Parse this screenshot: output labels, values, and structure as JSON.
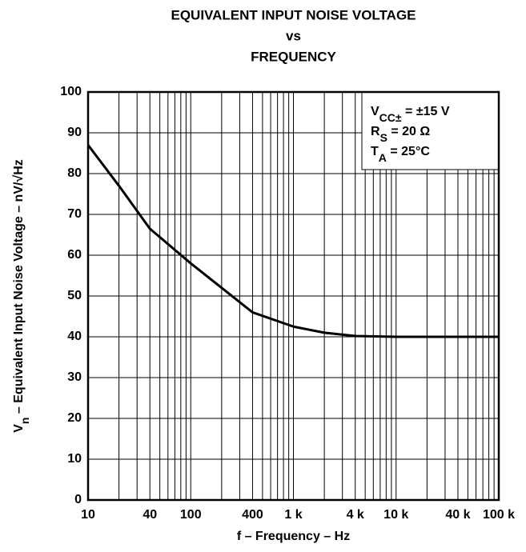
{
  "chart_data": {
    "type": "line",
    "title": [
      "EQUIVALENT INPUT NOISE VOLTAGE",
      "vs",
      "FREQUENCY"
    ],
    "x_label": "f – Frequency – Hz",
    "y_label": {
      "main": "V",
      "sub": "n",
      "rest": " – Equivalent Input Noise Voltage – nV/√Hz"
    },
    "annotations": [
      {
        "main": "V",
        "sub": "CC±",
        "rest": " = ±15 V"
      },
      {
        "main": "R",
        "sub": "S",
        "rest": " = 20 Ω"
      },
      {
        "main": "T",
        "sub": "A",
        "rest": " = 25°C"
      }
    ],
    "x": [
      10,
      20,
      40,
      100,
      200,
      400,
      1000,
      2000,
      4000,
      10000,
      100000
    ],
    "values": [
      87,
      77,
      66.5,
      58,
      52,
      46,
      42.5,
      41,
      40.2,
      40,
      40
    ],
    "color": "#000000",
    "xscale": "log",
    "xlim": [
      10,
      100000
    ],
    "ylim": [
      0,
      100
    ],
    "xticks": [
      10,
      40,
      100,
      400,
      {
        "value": 1000,
        "label": "1 k"
      },
      {
        "value": 4000,
        "label": "4 k"
      },
      {
        "value": 10000,
        "label": "10 k"
      },
      {
        "value": 40000,
        "label": "40 k"
      },
      {
        "value": 100000,
        "label": "100 k"
      }
    ],
    "yticks": [
      0,
      10,
      20,
      30,
      40,
      50,
      60,
      70,
      80,
      90,
      100
    ],
    "xgrid": [
      10,
      20,
      30,
      40,
      50,
      60,
      70,
      80,
      90,
      100,
      200,
      300,
      400,
      500,
      600,
      700,
      800,
      900,
      1000,
      2000,
      3000,
      4000,
      5000,
      6000,
      7000,
      8000,
      9000,
      10000,
      20000,
      30000,
      40000,
      50000,
      60000,
      70000,
      80000,
      90000,
      100000
    ],
    "grid": true
  }
}
